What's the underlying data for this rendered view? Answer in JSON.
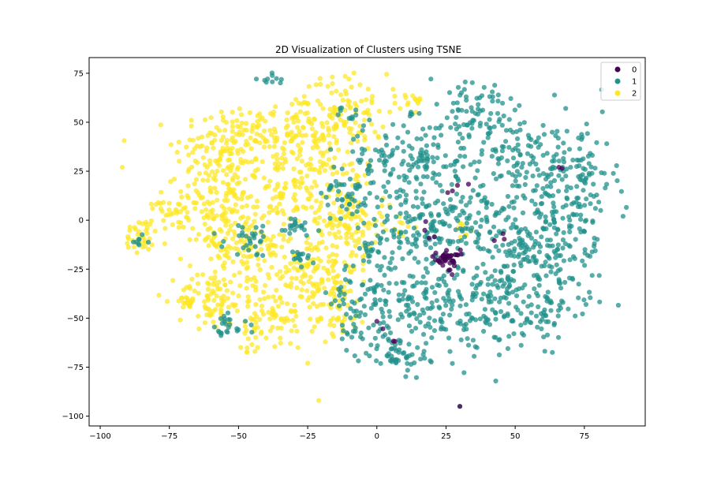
{
  "chart_data": {
    "type": "scatter",
    "title": "2D Visualization of Clusters using TSNE",
    "xlabel": "",
    "ylabel": "",
    "xlim": [
      -104,
      97
    ],
    "ylim": [
      -105,
      83
    ],
    "x_ticks": [
      -100,
      -75,
      -50,
      -25,
      0,
      25,
      50,
      75
    ],
    "y_ticks": [
      -100,
      -75,
      -50,
      -25,
      0,
      25,
      50,
      75
    ],
    "x_tick_labels": [
      "−100",
      "−75",
      "−50",
      "−25",
      "0",
      "25",
      "50",
      "75"
    ],
    "y_tick_labels": [
      "−100",
      "−75",
      "−50",
      "−25",
      "0",
      "25",
      "50",
      "75"
    ],
    "grid": false,
    "legend_position": "top-right",
    "point_alpha": 0.75,
    "series": [
      {
        "name": "0",
        "color": "#440154",
        "clusters": [
          {
            "x": 25,
            "y": -20,
            "sx": 2.5,
            "sy": 2.5,
            "n": 40
          },
          {
            "x": 20,
            "y": -5,
            "sx": 2,
            "sy": 2,
            "n": 4
          },
          {
            "x": 26,
            "y": 18,
            "sx": 3,
            "sy": 2,
            "n": 4
          },
          {
            "x": 44,
            "y": -9,
            "sx": 2,
            "sy": 2,
            "n": 3
          },
          {
            "x": 6,
            "y": -60,
            "sx": 4,
            "sy": 4,
            "n": 3
          },
          {
            "x": 68,
            "y": 27,
            "sx": 1,
            "sy": 1,
            "n": 2
          },
          {
            "x": 0,
            "y": -50,
            "sx": 1,
            "sy": 1,
            "n": 1
          }
        ],
        "points": [
          {
            "x": 30,
            "y": -95
          }
        ]
      },
      {
        "name": "1",
        "color": "#21918c",
        "clusters": [
          {
            "x": 10,
            "y": 30,
            "sx": 12,
            "sy": 10,
            "n": 130
          },
          {
            "x": -10,
            "y": 15,
            "sx": 5,
            "sy": 8,
            "n": 50
          },
          {
            "x": 15,
            "y": -5,
            "sx": 9,
            "sy": 11,
            "n": 110
          },
          {
            "x": 5,
            "y": -40,
            "sx": 10,
            "sy": 12,
            "n": 130
          },
          {
            "x": 7,
            "y": -68,
            "sx": 5,
            "sy": 5,
            "n": 50
          },
          {
            "x": 30,
            "y": -45,
            "sx": 10,
            "sy": 14,
            "n": 130
          },
          {
            "x": 35,
            "y": 0,
            "sx": 9,
            "sy": 12,
            "n": 110
          },
          {
            "x": 35,
            "y": 50,
            "sx": 12,
            "sy": 12,
            "n": 110
          },
          {
            "x": 55,
            "y": 30,
            "sx": 8,
            "sy": 12,
            "n": 90
          },
          {
            "x": 72,
            "y": 20,
            "sx": 7,
            "sy": 16,
            "n": 130
          },
          {
            "x": 55,
            "y": -15,
            "sx": 10,
            "sy": 10,
            "n": 110
          },
          {
            "x": 60,
            "y": -45,
            "sx": 9,
            "sy": 9,
            "n": 90
          },
          {
            "x": 45,
            "y": -35,
            "sx": 6,
            "sy": 8,
            "n": 40
          },
          {
            "x": 68,
            "y": -10,
            "sx": 5,
            "sy": 8,
            "n": 40
          },
          {
            "x": -45,
            "y": -10,
            "sx": 5,
            "sy": 4,
            "n": 30
          },
          {
            "x": -30,
            "y": -3,
            "sx": 4,
            "sy": 4,
            "n": 20
          },
          {
            "x": -28,
            "y": -20,
            "sx": 3,
            "sy": 3,
            "n": 15
          },
          {
            "x": -55,
            "y": -55,
            "sx": 4,
            "sy": 3,
            "n": 25
          },
          {
            "x": -85,
            "y": -10,
            "sx": 2,
            "sy": 2,
            "n": 8
          },
          {
            "x": -37,
            "y": 72,
            "sx": 3,
            "sy": 2,
            "n": 10
          },
          {
            "x": -10,
            "y": 55,
            "sx": 3,
            "sy": 3,
            "n": 10
          },
          {
            "x": -10,
            "y": -55,
            "sx": 3,
            "sy": 3,
            "n": 12
          },
          {
            "x": -2,
            "y": -15,
            "sx": 2,
            "sy": 2,
            "n": 12
          },
          {
            "x": -12,
            "y": -38,
            "sx": 4,
            "sy": 3,
            "n": 10
          }
        ],
        "points": [
          {
            "x": 30,
            "y": -95
          },
          {
            "x": 89,
            "y": 2
          }
        ]
      },
      {
        "name": "2",
        "color": "#fde725",
        "clusters": [
          {
            "x": -55,
            "y": 35,
            "sx": 9,
            "sy": 12,
            "n": 150
          },
          {
            "x": -30,
            "y": 45,
            "sx": 9,
            "sy": 10,
            "n": 130
          },
          {
            "x": -10,
            "y": 55,
            "sx": 7,
            "sy": 10,
            "n": 90
          },
          {
            "x": -30,
            "y": 15,
            "sx": 9,
            "sy": 10,
            "n": 120
          },
          {
            "x": -60,
            "y": 5,
            "sx": 8,
            "sy": 9,
            "n": 110
          },
          {
            "x": -10,
            "y": 10,
            "sx": 5,
            "sy": 12,
            "n": 70
          },
          {
            "x": -50,
            "y": -15,
            "sx": 9,
            "sy": 10,
            "n": 110
          },
          {
            "x": -25,
            "y": -25,
            "sx": 9,
            "sy": 10,
            "n": 130
          },
          {
            "x": -60,
            "y": -40,
            "sx": 6,
            "sy": 7,
            "n": 70
          },
          {
            "x": -40,
            "y": -50,
            "sx": 8,
            "sy": 8,
            "n": 80
          },
          {
            "x": -15,
            "y": -45,
            "sx": 6,
            "sy": 8,
            "n": 60
          },
          {
            "x": -85,
            "y": -7,
            "sx": 3,
            "sy": 5,
            "n": 35
          },
          {
            "x": -77,
            "y": 8,
            "sx": 2,
            "sy": 4,
            "n": 15
          },
          {
            "x": -68,
            "y": -42,
            "sx": 1,
            "sy": 1,
            "n": 18
          },
          {
            "x": -10,
            "y": -5,
            "sx": 6,
            "sy": 8,
            "n": 60
          },
          {
            "x": 12,
            "y": 62,
            "sx": 3,
            "sy": 3,
            "n": 15
          },
          {
            "x": 9,
            "y": -5,
            "sx": 3,
            "sy": 3,
            "n": 12
          },
          {
            "x": 32,
            "y": -5,
            "sx": 2,
            "sy": 3,
            "n": 8
          },
          {
            "x": -46,
            "y": -65,
            "sx": 2,
            "sy": 2,
            "n": 8
          }
        ],
        "points": [
          {
            "x": -92,
            "y": 27
          },
          {
            "x": -21,
            "y": -92
          },
          {
            "x": -25,
            "y": -73
          }
        ]
      }
    ]
  }
}
